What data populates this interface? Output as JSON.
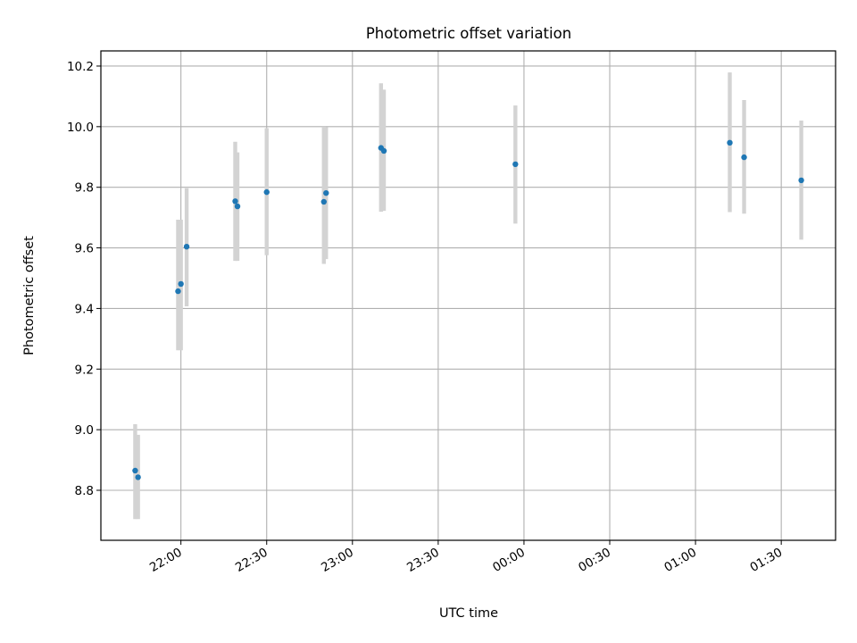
{
  "chart_data": {
    "type": "scatter",
    "title": "Photometric offset variation",
    "xlabel": "UTC time",
    "ylabel": "Photometric offset",
    "x_tick_labels": [
      "22:00",
      "22:30",
      "23:00",
      "23:30",
      "00:00",
      "00:30",
      "01:00",
      "01:30"
    ],
    "y_tick_labels": [
      "8.8",
      "9.0",
      "9.2",
      "9.4",
      "9.6",
      "9.8",
      "10.0",
      "10.2"
    ],
    "grid": true,
    "colors": {
      "point": "#1f77b4",
      "errorbar": "#d3d3d3"
    },
    "series": [
      {
        "points": [
          {
            "x": "21:44",
            "y": 8.865,
            "yerr": [
              8.705,
              9.018
            ]
          },
          {
            "x": "21:45",
            "y": 8.843,
            "yerr": [
              8.705,
              8.983
            ]
          },
          {
            "x": "21:59",
            "y": 9.457,
            "yerr": [
              9.262,
              9.693
            ]
          },
          {
            "x": "22:00",
            "y": 9.481,
            "yerr": [
              9.262,
              9.693
            ]
          },
          {
            "x": "22:02",
            "y": 9.604,
            "yerr": [
              9.407,
              9.797
            ]
          },
          {
            "x": "22:19",
            "y": 9.754,
            "yerr": [
              9.557,
              9.95
            ]
          },
          {
            "x": "22:19",
            "y": 9.737,
            "yerr": [
              9.557,
              9.915
            ]
          },
          {
            "x": "22:30",
            "y": 9.784,
            "yerr": [
              9.576,
              9.995
            ]
          },
          {
            "x": "22:50",
            "y": 9.752,
            "yerr": [
              9.547,
              10.0
            ]
          },
          {
            "x": "22:50",
            "y": 9.781,
            "yerr": [
              9.563,
              9.998
            ]
          },
          {
            "x": "23:10",
            "y": 9.93,
            "yerr": [
              9.719,
              10.143
            ]
          },
          {
            "x": "23:11",
            "y": 9.92,
            "yerr": [
              9.722,
              10.122
            ]
          },
          {
            "x": "23:57",
            "y": 9.876,
            "yerr": [
              9.68,
              10.07
            ]
          },
          {
            "x": "01:12",
            "y": 9.947,
            "yerr": [
              9.718,
              10.179
            ]
          },
          {
            "x": "01:17",
            "y": 9.899,
            "yerr": [
              9.713,
              10.088
            ]
          },
          {
            "x": "01:37",
            "y": 9.823,
            "yerr": [
              9.627,
              10.02
            ]
          }
        ]
      }
    ]
  }
}
